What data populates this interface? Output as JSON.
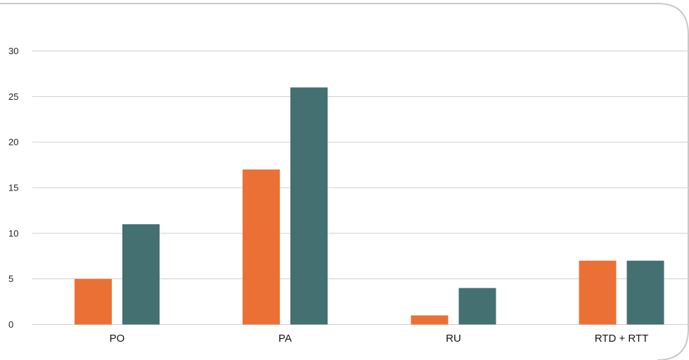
{
  "chart_data": {
    "type": "bar",
    "categories": [
      "PO",
      "PA",
      "RU",
      "RTD + RTT"
    ],
    "series": [
      {
        "color": "#EB7035",
        "values": [
          5,
          17,
          1,
          7
        ]
      },
      {
        "color": "#447072",
        "values": [
          11,
          26,
          4,
          7
        ]
      }
    ],
    "y_ticks": [
      "0",
      "5",
      "10",
      "15",
      "20",
      "25",
      "30"
    ],
    "ylim": [
      0,
      30
    ],
    "grid": true,
    "legend": "none"
  }
}
